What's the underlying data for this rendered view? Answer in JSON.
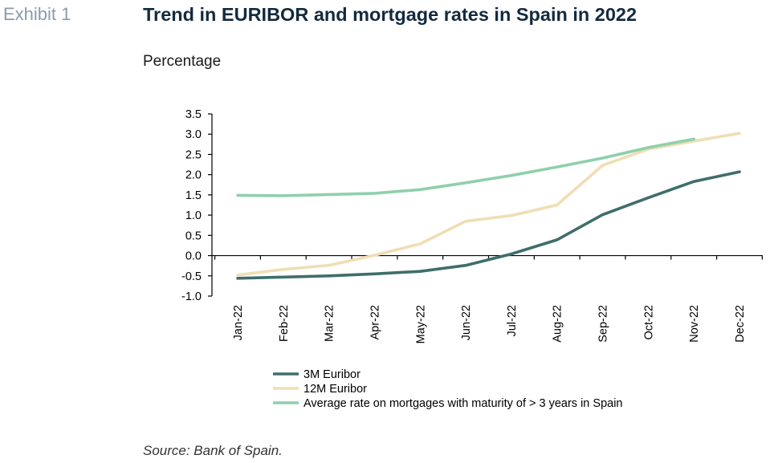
{
  "exhibit_label": "Exhibit 1",
  "source": "Source: Bank of Spain.",
  "chart_data": {
    "type": "line",
    "title": "Trend in EURIBOR and mortgage rates in Spain in 2022",
    "ylabel": "Percentage",
    "xlabel": "",
    "categories": [
      "Jan-22",
      "Feb-22",
      "Mar-22",
      "Apr-22",
      "May-22",
      "Jun-22",
      "Jul-22",
      "Aug-22",
      "Sep-22",
      "Oct-22",
      "Nov-22",
      "Dec-22"
    ],
    "ylim": [
      -1.0,
      3.5
    ],
    "yticks": [
      "3.5",
      "3.0",
      "2.5",
      "2.0",
      "1.5",
      "1.0",
      "0.5",
      "0.0",
      "-0.5",
      "-1.0"
    ],
    "grid": false,
    "legend_position": "bottom",
    "series": [
      {
        "name": "3M Euribor",
        "color": "#3f6e6b",
        "values": [
          -0.56,
          -0.53,
          -0.5,
          -0.45,
          -0.39,
          -0.24,
          0.04,
          0.39,
          1.01,
          1.43,
          1.83,
          2.07
        ]
      },
      {
        "name": "12M Euribor",
        "color": "#f0deb4",
        "values": [
          -0.48,
          -0.34,
          -0.24,
          0.01,
          0.29,
          0.85,
          0.99,
          1.25,
          2.23,
          2.63,
          2.83,
          3.02
        ]
      },
      {
        "name": "Average rate on mortgages with maturity of > 3 years in Spain",
        "color": "#8fd0ab",
        "values": [
          1.49,
          1.48,
          1.51,
          1.54,
          1.63,
          1.8,
          1.98,
          2.19,
          2.41,
          2.67,
          2.88,
          null
        ]
      }
    ]
  }
}
